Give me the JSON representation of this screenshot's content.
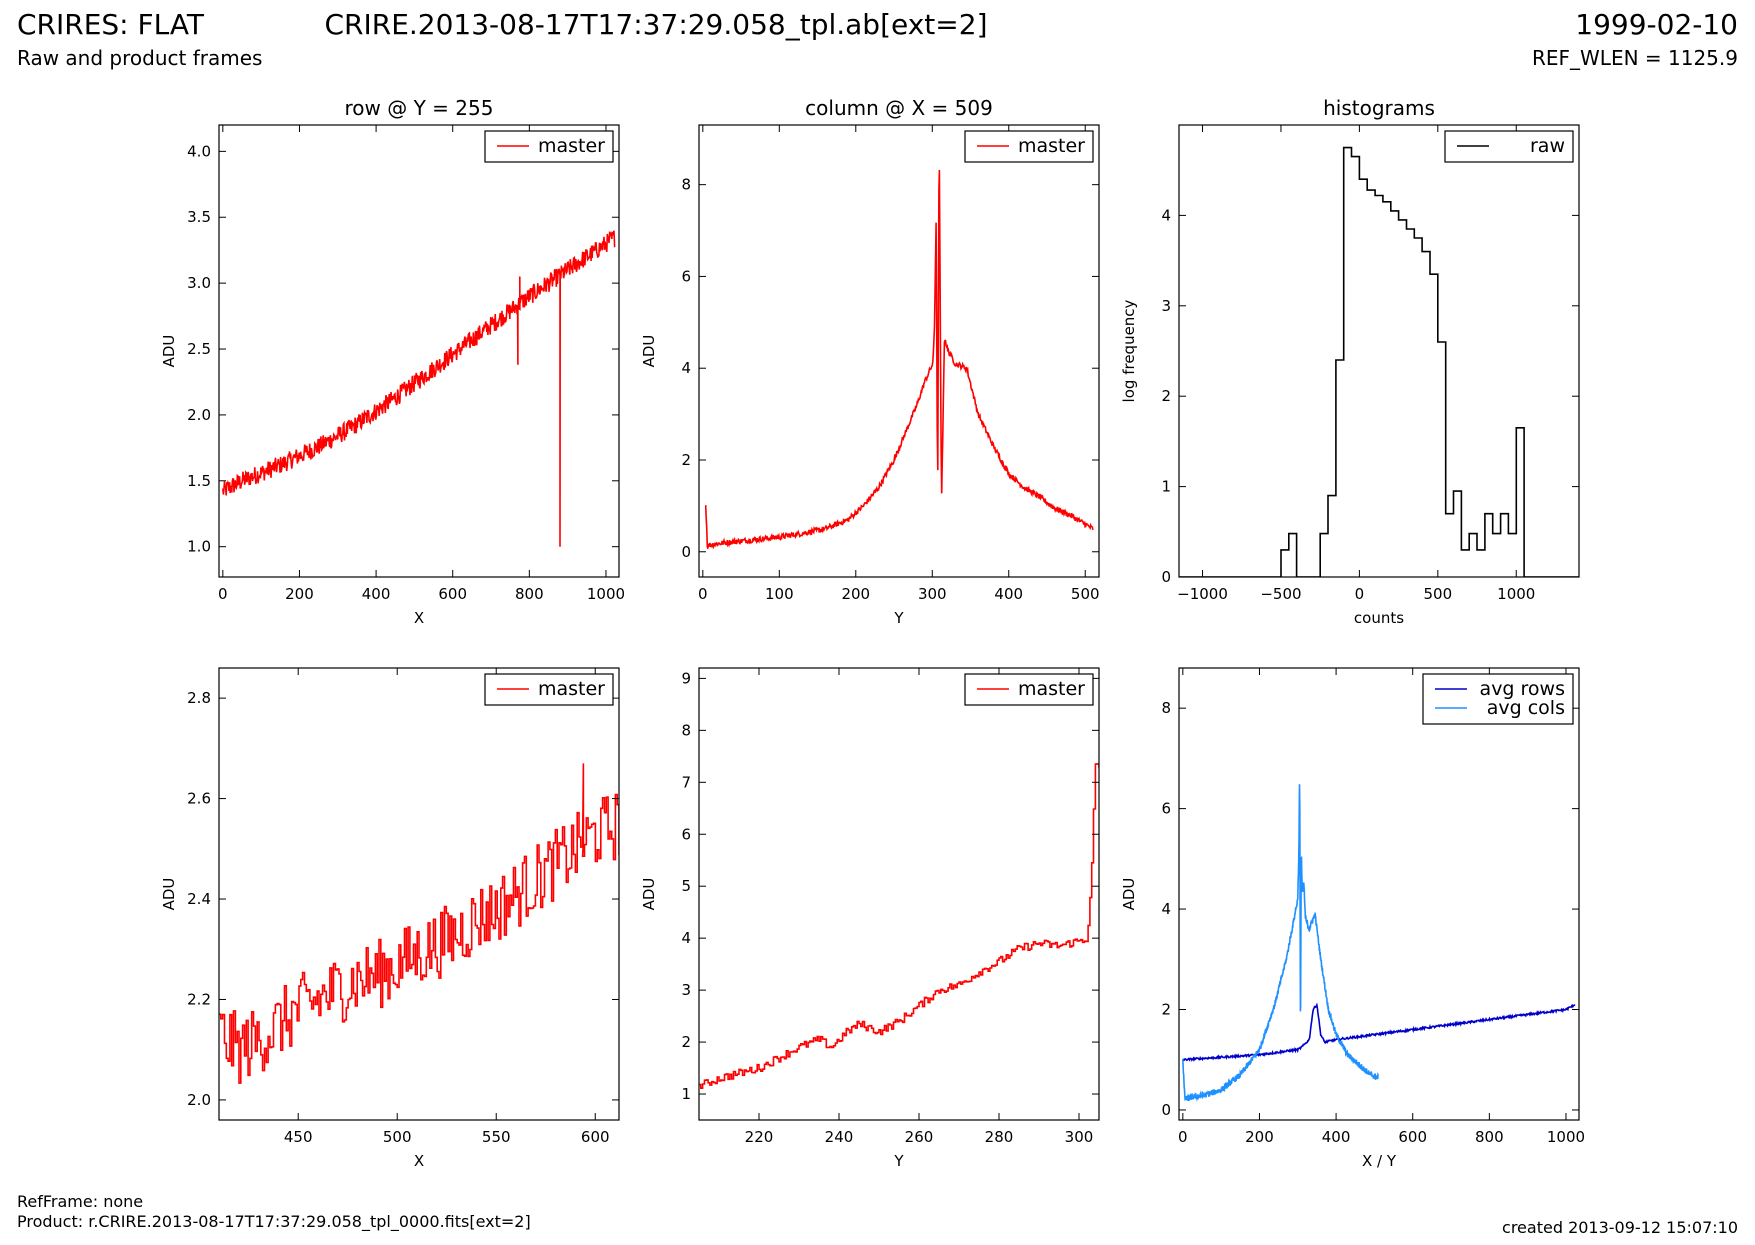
{
  "header": {
    "left_title": "CRIRES: FLAT",
    "left_subtitle": "Raw and product frames",
    "center_title": "CRIRE.2013-08-17T17:37:29.058_tpl.ab[ext=2]",
    "right_date": "1999-02-10",
    "right_subtitle": "REF_WLEN = 1125.9"
  },
  "footer": {
    "ref_frame": "RefFrame: none",
    "product": "Product: r.CRIRE.2013-08-17T17:37:29.058_tpl_0000.fits[ext=2]",
    "created": "created 2013-09-12 15:07:10"
  },
  "colors": {
    "master": "#ff0000",
    "raw": "#000000",
    "avg_rows": "#0000cc",
    "avg_cols": "#1e90ff"
  },
  "chart_data": [
    {
      "type": "line",
      "title": "row @ Y = 255",
      "xlabel": "X",
      "ylabel": "ADU",
      "xlim": [
        -10,
        1034
      ],
      "ylim": [
        0.77,
        4.2
      ],
      "xticks": [
        0,
        200,
        400,
        600,
        800,
        1000
      ],
      "yticks": [
        1.0,
        1.5,
        2.0,
        2.5,
        3.0,
        3.5,
        4.0
      ],
      "ytick_decimals": 1,
      "legend": "top-right",
      "grid": false,
      "series": [
        {
          "name": "master",
          "color": "#ff0000",
          "x": [
            0,
            50,
            100,
            150,
            200,
            250,
            300,
            350,
            400,
            450,
            500,
            550,
            600,
            650,
            700,
            750,
            800,
            850,
            900,
            950,
            1000,
            1024
          ],
          "y": [
            1.42,
            1.5,
            1.56,
            1.62,
            1.69,
            1.76,
            1.84,
            1.93,
            2.03,
            2.13,
            2.24,
            2.35,
            2.46,
            2.57,
            2.68,
            2.79,
            2.9,
            3.0,
            3.1,
            3.2,
            3.3,
            3.35
          ],
          "noise": 0.07,
          "spikes": [
            {
              "x": 770,
              "y": 2.38
            },
            {
              "x": 775,
              "y": 3.05
            },
            {
              "x": 880,
              "y": 1.0
            }
          ]
        }
      ]
    },
    {
      "type": "line",
      "title": "column @ X = 509",
      "xlabel": "Y",
      "ylabel": "ADU",
      "xlim": [
        -5,
        518
      ],
      "ylim": [
        -0.55,
        9.3
      ],
      "xticks": [
        0,
        100,
        200,
        300,
        400,
        500
      ],
      "yticks": [
        0,
        2,
        4,
        6,
        8
      ],
      "ytick_decimals": 0,
      "legend": "top-right",
      "grid": false,
      "series": [
        {
          "name": "master",
          "color": "#ff0000",
          "x": [
            3,
            4,
            6,
            8,
            30,
            60,
            100,
            130,
            160,
            190,
            210,
            230,
            250,
            265,
            280,
            290,
            298,
            301,
            303,
            305,
            307,
            309,
            312,
            316,
            320,
            330,
            345,
            360,
            380,
            400,
            420,
            440,
            460,
            480,
            500,
            510
          ],
          "y": [
            1.0,
            1.0,
            0.1,
            0.15,
            0.2,
            0.25,
            0.32,
            0.4,
            0.5,
            0.7,
            1.0,
            1.4,
            2.0,
            2.6,
            3.2,
            3.7,
            4.0,
            4.1,
            5.0,
            7.3,
            1.0,
            9.3,
            1.0,
            4.7,
            4.4,
            4.1,
            4.0,
            3.0,
            2.3,
            1.7,
            1.4,
            1.2,
            0.95,
            0.8,
            0.6,
            0.5
          ],
          "noise": 0.06,
          "spikes": []
        }
      ]
    },
    {
      "type": "line",
      "title": "histograms",
      "xlabel": "counts",
      "ylabel": "log frequency",
      "xlim": [
        -1150,
        1400
      ],
      "ylim": [
        0,
        5
      ],
      "xticks": [
        -1000,
        -500,
        0,
        500,
        1000
      ],
      "yticks": [
        0,
        1,
        2,
        3,
        4
      ],
      "ytick_decimals": 0,
      "legend": "top-right",
      "grid": false,
      "series": [
        {
          "name": "raw",
          "color": "#000000",
          "step": true,
          "x": [
            -1150,
            -500,
            -450,
            -400,
            -350,
            -300,
            -250,
            -200,
            -150,
            -100,
            -50,
            0,
            50,
            100,
            150,
            200,
            250,
            300,
            350,
            400,
            450,
            500,
            550,
            600,
            650,
            700,
            750,
            800,
            850,
            900,
            950,
            1000,
            1050,
            1100,
            1150,
            1200,
            1250,
            1300,
            1350,
            1400
          ],
          "y": [
            0,
            0.3,
            0.48,
            0,
            0,
            0,
            0.48,
            0.9,
            2.4,
            4.75,
            4.65,
            4.4,
            4.28,
            4.22,
            4.15,
            4.05,
            3.95,
            3.85,
            3.75,
            3.6,
            3.35,
            2.6,
            0.7,
            0.95,
            0.3,
            0.48,
            0.3,
            0.7,
            0.48,
            0.7,
            0.48,
            1.65,
            0,
            0,
            0,
            0,
            0,
            0,
            0,
            0
          ],
          "x_limit": 1400
        }
      ]
    },
    {
      "type": "line",
      "title": "",
      "xlabel": "X",
      "ylabel": "ADU",
      "xlim": [
        410,
        612
      ],
      "ylim": [
        1.96,
        2.86
      ],
      "xticks": [
        450,
        500,
        550,
        600
      ],
      "yticks": [
        2.0,
        2.2,
        2.4,
        2.6,
        2.8
      ],
      "ytick_decimals": 1,
      "legend": "top-right",
      "grid": false,
      "series": [
        {
          "name": "master",
          "color": "#ff0000",
          "step": true,
          "x": [
            410,
            420,
            430,
            440,
            450,
            460,
            470,
            480,
            490,
            500,
            510,
            520,
            530,
            540,
            550,
            560,
            570,
            580,
            590,
            600,
            612
          ],
          "y": [
            2.13,
            2.1,
            2.12,
            2.15,
            2.18,
            2.2,
            2.22,
            2.24,
            2.25,
            2.27,
            2.29,
            2.31,
            2.33,
            2.36,
            2.38,
            2.41,
            2.44,
            2.47,
            2.5,
            2.53,
            2.55
          ],
          "noise": 0.07,
          "spikes": [
            {
              "x": 594,
              "y": 2.67
            }
          ]
        }
      ]
    },
    {
      "type": "line",
      "title": "",
      "xlabel": "Y",
      "ylabel": "ADU",
      "xlim": [
        205,
        305
      ],
      "ylim": [
        0.5,
        9.2
      ],
      "xticks": [
        220,
        240,
        260,
        280,
        300
      ],
      "yticks": [
        1,
        2,
        3,
        4,
        5,
        6,
        7,
        8,
        9
      ],
      "ytick_decimals": 0,
      "legend": "top-right",
      "grid": false,
      "series": [
        {
          "name": "master",
          "color": "#ff0000",
          "step": true,
          "x": [
            205,
            210,
            215,
            220,
            225,
            230,
            235,
            238,
            242,
            245,
            250,
            255,
            260,
            265,
            270,
            275,
            280,
            285,
            290,
            295,
            300,
            302,
            303,
            304,
            305
          ],
          "y": [
            1.15,
            1.3,
            1.4,
            1.5,
            1.7,
            1.9,
            2.05,
            1.9,
            2.2,
            2.35,
            2.2,
            2.4,
            2.7,
            3.0,
            3.1,
            3.35,
            3.55,
            3.8,
            3.9,
            3.85,
            3.95,
            4.0,
            5.0,
            7.3,
            7.3
          ],
          "noise": 0.08,
          "spikes": []
        }
      ]
    },
    {
      "type": "line",
      "title": "",
      "xlabel": "X / Y",
      "ylabel": "ADU",
      "xlim": [
        -10,
        1034
      ],
      "ylim": [
        -0.2,
        8.8
      ],
      "xticks": [
        0,
        200,
        400,
        600,
        800,
        1000
      ],
      "yticks": [
        0,
        2,
        4,
        6,
        8
      ],
      "ytick_decimals": 0,
      "legend": "top-right",
      "grid": false,
      "series": [
        {
          "name": "avg rows",
          "color": "#0000cc",
          "x": [
            0,
            100,
            200,
            300,
            310,
            330,
            340,
            350,
            360,
            370,
            400,
            500,
            600,
            700,
            800,
            900,
            1000,
            1024
          ],
          "y": [
            1.0,
            1.05,
            1.1,
            1.2,
            1.25,
            1.4,
            2.0,
            2.1,
            1.5,
            1.35,
            1.4,
            1.5,
            1.6,
            1.7,
            1.8,
            1.9,
            2.0,
            2.1
          ],
          "noise": 0.02,
          "spikes": []
        },
        {
          "name": "avg cols",
          "color": "#1e90ff",
          "x": [
            0,
            5,
            8,
            20,
            60,
            100,
            150,
            200,
            240,
            270,
            290,
            300,
            303,
            305,
            307,
            309,
            312,
            316,
            320,
            330,
            345,
            360,
            380,
            400,
            430,
            460,
            490,
            510
          ],
          "y": [
            1.0,
            0.25,
            0.22,
            0.25,
            0.3,
            0.4,
            0.7,
            1.2,
            2.1,
            3.0,
            3.8,
            4.2,
            5.2,
            6.8,
            1.2,
            5.2,
            4.3,
            4.5,
            3.8,
            3.6,
            3.9,
            3.0,
            2.0,
            1.5,
            1.1,
            0.9,
            0.7,
            0.65
          ],
          "noise": 0.06,
          "spikes": []
        }
      ]
    }
  ]
}
